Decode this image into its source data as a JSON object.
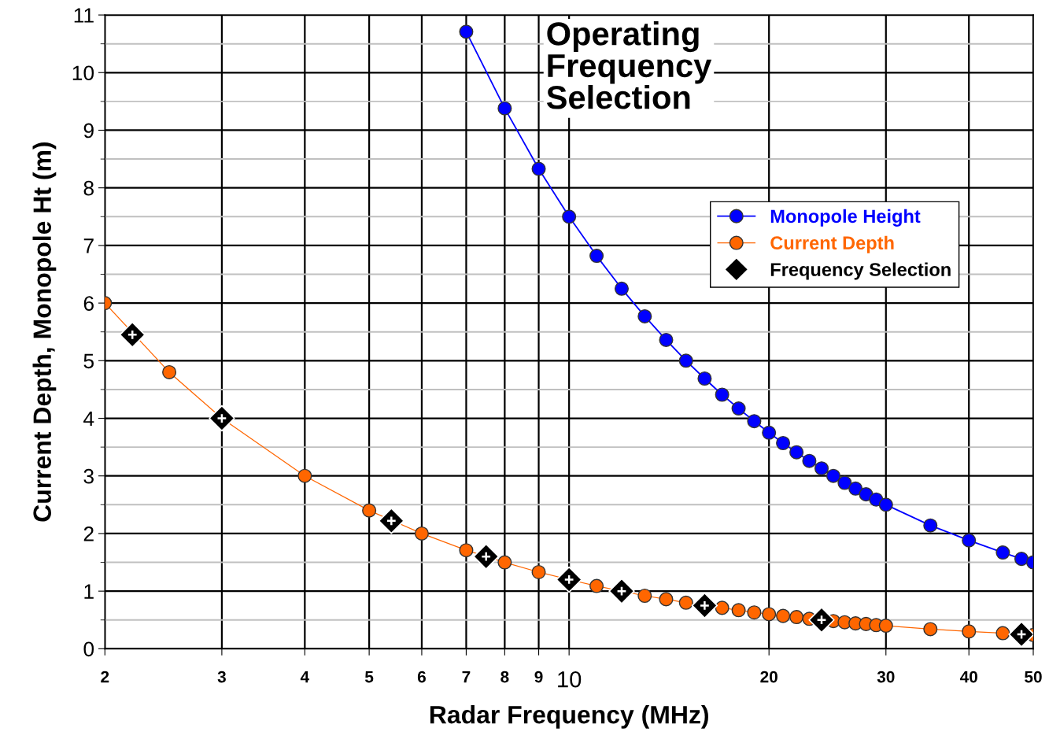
{
  "chart_data": {
    "type": "line",
    "title": "Operating\nFrequency\nSelection",
    "xlabel": "Radar Frequency (MHz)",
    "ylabel": "Current Depth, Monopole Ht (m)",
    "log": "x",
    "xlim": [
      2,
      50
    ],
    "xticks": [
      2,
      3,
      4,
      5,
      6,
      7,
      8,
      9,
      10,
      20,
      30,
      40,
      50
    ],
    "ylim": [
      0,
      11
    ],
    "yticks": [
      0,
      1,
      2,
      3,
      4,
      5,
      6,
      7,
      8,
      9,
      10,
      11
    ],
    "grid": true,
    "legend": "top right",
    "series": [
      {
        "name": "Monopole Height",
        "color": "#0000ff",
        "marker": "circle",
        "x": [
          7,
          8,
          9,
          10,
          11,
          12,
          13,
          14,
          15,
          16,
          17,
          18,
          19,
          20,
          21,
          22,
          23,
          24,
          25,
          26,
          27,
          28,
          29,
          30,
          35,
          40,
          45,
          48,
          50
        ],
        "values": [
          10.71,
          9.38,
          8.33,
          7.5,
          6.82,
          6.25,
          5.77,
          5.36,
          5.0,
          4.69,
          4.41,
          4.17,
          3.95,
          3.75,
          3.57,
          3.41,
          3.26,
          3.13,
          3.0,
          2.88,
          2.78,
          2.68,
          2.59,
          2.5,
          2.14,
          1.88,
          1.67,
          1.56,
          1.5
        ]
      },
      {
        "name": "Current Depth",
        "color": "#ff6600",
        "marker": "circle",
        "x": [
          2,
          2.5,
          3,
          4,
          5,
          6,
          7,
          8,
          9,
          10,
          11,
          12,
          13,
          14,
          15,
          16,
          17,
          18,
          19,
          20,
          21,
          22,
          23,
          25,
          26,
          27,
          28,
          29,
          30,
          35,
          40,
          45,
          50
        ],
        "values": [
          6.0,
          4.8,
          4.0,
          3.0,
          2.4,
          2.0,
          1.71,
          1.5,
          1.33,
          1.2,
          1.09,
          1.0,
          0.92,
          0.86,
          0.8,
          0.75,
          0.71,
          0.67,
          0.63,
          0.6,
          0.57,
          0.55,
          0.52,
          0.48,
          0.46,
          0.44,
          0.43,
          0.41,
          0.4,
          0.34,
          0.3,
          0.27,
          0.24
        ]
      },
      {
        "name": "Frequency Selection",
        "type": "scatter",
        "color": "#000000",
        "marker": "diamond",
        "x": [
          2.2,
          3,
          5.4,
          7.5,
          10,
          12,
          16,
          24,
          48
        ],
        "values": [
          5.45,
          4.0,
          2.22,
          1.6,
          1.2,
          1.0,
          0.75,
          0.5,
          0.25
        ]
      }
    ]
  }
}
